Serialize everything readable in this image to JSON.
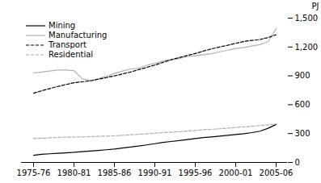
{
  "chart_data": {
    "type": "line",
    "ylabel": "PJ",
    "categories": [
      "1975-76",
      null,
      null,
      null,
      null,
      "1980-81",
      null,
      null,
      null,
      null,
      "1985-86",
      null,
      null,
      null,
      null,
      "1990-91",
      null,
      null,
      null,
      null,
      "1995-96",
      null,
      null,
      null,
      null,
      "2000-01",
      null,
      null,
      null,
      null,
      "2005-06"
    ],
    "series": [
      {
        "name": "Mining",
        "color": "#000000",
        "line_style": "solid",
        "values": [
          75,
          85,
          90,
          95,
          100,
          105,
          112,
          118,
          125,
          132,
          140,
          150,
          160,
          170,
          182,
          195,
          208,
          218,
          228,
          238,
          248,
          258,
          265,
          273,
          282,
          290,
          298,
          310,
          325,
          355,
          395
        ]
      },
      {
        "name": "Manufacturing",
        "color": "#b0b0b0",
        "line_style": "solid",
        "values": [
          930,
          940,
          950,
          960,
          960,
          955,
          870,
          850,
          870,
          895,
          925,
          950,
          970,
          980,
          1010,
          1030,
          1055,
          1068,
          1080,
          1100,
          1110,
          1120,
          1130,
          1150,
          1165,
          1185,
          1195,
          1210,
          1225,
          1255,
          1390
        ]
      },
      {
        "name": "Transport",
        "color": "#000000",
        "line_style": "dashed",
        "values": [
          720,
          745,
          768,
          790,
          810,
          828,
          838,
          848,
          865,
          882,
          900,
          920,
          940,
          965,
          988,
          1012,
          1040,
          1068,
          1090,
          1112,
          1132,
          1158,
          1180,
          1200,
          1218,
          1238,
          1258,
          1268,
          1278,
          1298,
          1328
        ]
      },
      {
        "name": "Residential",
        "color": "#b0b0b0",
        "line_style": "dashed",
        "values": [
          248,
          252,
          256,
          260,
          263,
          264,
          265,
          268,
          272,
          274,
          278,
          282,
          288,
          293,
          298,
          304,
          310,
          315,
          320,
          326,
          332,
          340,
          345,
          350,
          356,
          364,
          370,
          376,
          384,
          391,
          400
        ]
      }
    ],
    "ylim": [
      0,
      1500
    ],
    "yticks": [
      0,
      300,
      600,
      900,
      1200,
      1500
    ],
    "grid": false,
    "legend": "upper left"
  }
}
